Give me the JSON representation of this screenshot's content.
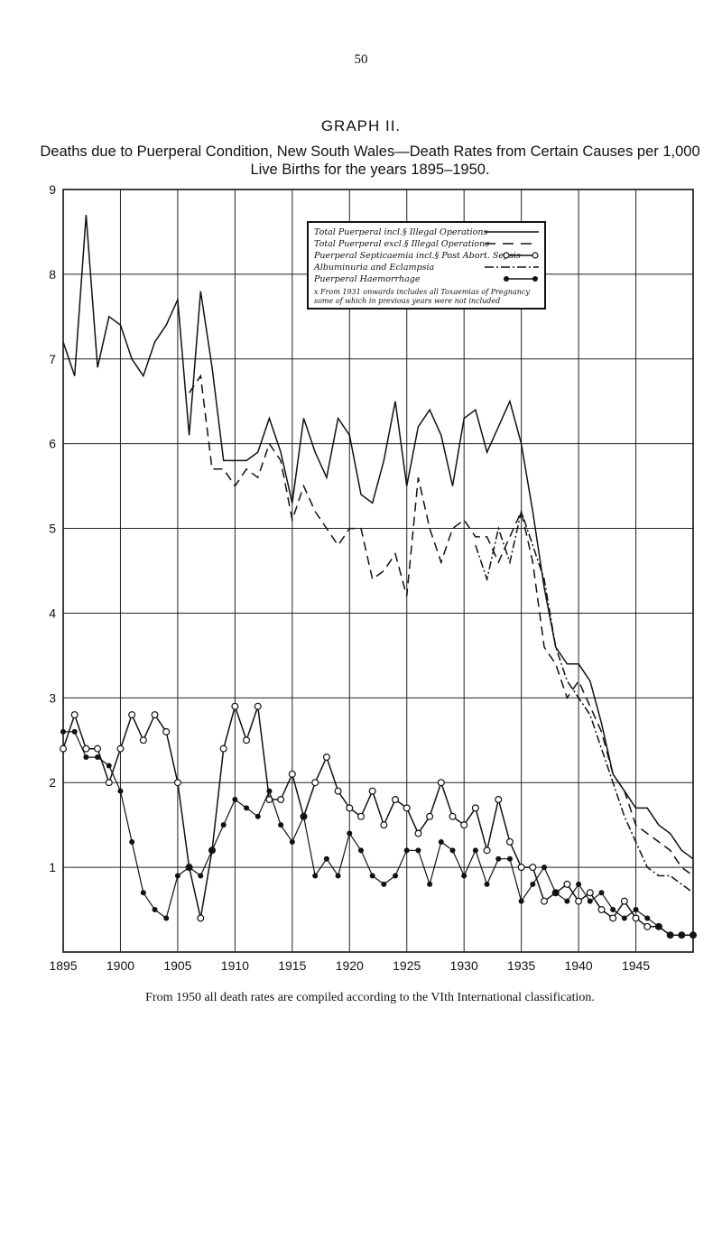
{
  "page_number": "50",
  "graph_label": "GRAPH II.",
  "footnote": "From 1950 all death rates are compiled according to the VIth International classification.",
  "chart_data": {
    "type": "line",
    "title": "Deaths due to Puerperal Condition, New South Wales—Death Rates from Certain Causes per 1,000 Live Births for the years 1895–1950.",
    "xlabel": "",
    "ylabel": "",
    "x_ticks": [
      "1895",
      "1900",
      "1905",
      "1910",
      "1915",
      "1920",
      "1925",
      "1930",
      "1935",
      "1940",
      "1945"
    ],
    "y_ticks": [
      "1",
      "2",
      "3",
      "4",
      "5",
      "6",
      "7",
      "8",
      "9"
    ],
    "xlim": [
      1895,
      1950
    ],
    "ylim": [
      0,
      9
    ],
    "grid": true,
    "legend_position": "top-center",
    "legend_note": "x From 1931 onwards includes all Toxaemias of Pregnancy some of which in previous years were not included",
    "x": [
      1895,
      1896,
      1897,
      1898,
      1899,
      1900,
      1901,
      1902,
      1903,
      1904,
      1905,
      1906,
      1907,
      1908,
      1909,
      1910,
      1911,
      1912,
      1913,
      1914,
      1915,
      1916,
      1917,
      1918,
      1919,
      1920,
      1921,
      1922,
      1923,
      1924,
      1925,
      1926,
      1927,
      1928,
      1929,
      1930,
      1931,
      1932,
      1933,
      1934,
      1935,
      1936,
      1937,
      1938,
      1939,
      1940,
      1941,
      1942,
      1943,
      1944,
      1945,
      1946,
      1947,
      1948,
      1949,
      1950
    ],
    "series": [
      {
        "name": "Total Puerperal incl.§ Illegal Operations",
        "style": "solid",
        "values": [
          7.2,
          6.8,
          8.7,
          6.9,
          7.5,
          7.4,
          7.0,
          6.8,
          7.2,
          7.4,
          7.7,
          6.1,
          7.8,
          6.9,
          5.8,
          5.8,
          5.8,
          5.9,
          6.3,
          5.9,
          5.3,
          6.3,
          5.9,
          5.6,
          6.3,
          6.1,
          5.4,
          5.3,
          5.8,
          6.5,
          5.5,
          6.2,
          6.4,
          6.1,
          5.5,
          6.3,
          6.4,
          5.9,
          6.2,
          6.5,
          6.0,
          5.2,
          4.3,
          3.6,
          3.4,
          3.4,
          3.2,
          2.7,
          2.1,
          1.9,
          1.7,
          1.7,
          1.5,
          1.4,
          1.2,
          1.1
        ]
      },
      {
        "name": "Total Puerperal excl.§ Illegal Operations",
        "style": "dashed",
        "values": [
          null,
          null,
          null,
          null,
          null,
          null,
          null,
          null,
          null,
          null,
          null,
          6.6,
          6.8,
          5.7,
          5.7,
          5.5,
          5.7,
          5.6,
          6.0,
          5.8,
          5.1,
          5.5,
          5.2,
          5.0,
          4.8,
          5.0,
          5.0,
          4.4,
          4.5,
          4.7,
          4.2,
          5.6,
          5.0,
          4.6,
          5.0,
          5.1,
          4.9,
          4.9,
          4.6,
          4.9,
          5.2,
          4.6,
          3.6,
          3.4,
          3.0,
          3.2,
          2.9,
          2.6,
          2.1,
          1.9,
          1.5,
          1.4,
          1.3,
          1.2,
          1.0,
          0.9
        ]
      },
      {
        "name": "Puerperal Septicaemia incl.§ Post Abort. Sepsis",
        "style": "circles",
        "values": [
          2.4,
          2.8,
          2.4,
          2.4,
          2.0,
          2.4,
          2.8,
          2.5,
          2.8,
          2.6,
          2.0,
          1.0,
          0.4,
          1.2,
          2.4,
          2.9,
          2.5,
          2.9,
          1.8,
          1.8,
          2.1,
          1.6,
          2.0,
          2.3,
          1.9,
          1.7,
          1.6,
          1.9,
          1.5,
          1.8,
          1.7,
          1.4,
          1.6,
          2.0,
          1.6,
          1.5,
          1.7,
          1.2,
          1.8,
          1.3,
          1.0,
          1.0,
          0.6,
          0.7,
          0.8,
          0.6,
          0.7,
          0.5,
          0.4,
          0.6,
          0.4,
          0.3,
          0.3,
          0.2,
          0.2,
          0.2
        ]
      },
      {
        "name": "Albuminuria and Eclampsia",
        "style": "dash-dot",
        "values": [
          null,
          null,
          null,
          null,
          null,
          null,
          null,
          null,
          null,
          null,
          null,
          null,
          null,
          null,
          null,
          null,
          null,
          null,
          null,
          null,
          null,
          null,
          null,
          null,
          null,
          null,
          null,
          null,
          null,
          null,
          null,
          null,
          null,
          null,
          null,
          null,
          4.8,
          4.4,
          5.0,
          4.6,
          5.2,
          4.8,
          4.4,
          3.6,
          3.2,
          3.0,
          2.8,
          2.4,
          2.0,
          1.6,
          1.3,
          1.0,
          0.9,
          0.9,
          0.8,
          0.7
        ]
      },
      {
        "name": "Puerperal Haemorrhage",
        "style": "dots",
        "values": [
          2.6,
          2.6,
          2.3,
          2.3,
          2.2,
          1.9,
          1.3,
          0.7,
          0.5,
          0.4,
          0.9,
          1.0,
          0.9,
          1.2,
          1.5,
          1.8,
          1.7,
          1.6,
          1.9,
          1.5,
          1.3,
          1.6,
          0.9,
          1.1,
          0.9,
          1.4,
          1.2,
          0.9,
          0.8,
          0.9,
          1.2,
          1.2,
          0.8,
          1.3,
          1.2,
          0.9,
          1.2,
          0.8,
          1.1,
          1.1,
          0.6,
          0.8,
          1.0,
          0.7,
          0.6,
          0.8,
          0.6,
          0.7,
          0.5,
          0.4,
          0.5,
          0.4,
          0.3,
          0.2,
          0.2,
          0.2
        ]
      }
    ]
  }
}
